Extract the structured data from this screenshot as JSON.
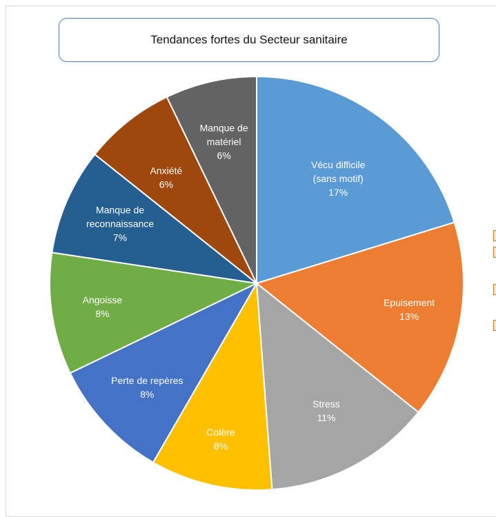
{
  "chart_data": {
    "type": "pie",
    "title": "Tendances fortes du Secteur sanitaire",
    "slices": [
      {
        "label": "Vécu difficile\n(sans motif)\n17%",
        "value": 17,
        "color": "#5b9bd5"
      },
      {
        "label": "Epuisement\n13%",
        "value": 13,
        "color": "#ed7d31"
      },
      {
        "label": "Stress\n11%",
        "value": 11,
        "color": "#a5a5a5"
      },
      {
        "label": "Colère\n8%",
        "value": 8,
        "color": "#ffc000"
      },
      {
        "label": "Perte de repères\n8%",
        "value": 8,
        "color": "#4472c4"
      },
      {
        "label": "Angoisse\n8%",
        "value": 8,
        "color": "#70ad47"
      },
      {
        "label": "Manque de\nreconnaissance\n7%",
        "value": 7,
        "color": "#255e91"
      },
      {
        "label": "Anxiété\n6%",
        "value": 6,
        "color": "#9e480e"
      },
      {
        "label": "Manque de\nmatériel\n6%",
        "value": 6,
        "color": "#636363"
      }
    ]
  }
}
